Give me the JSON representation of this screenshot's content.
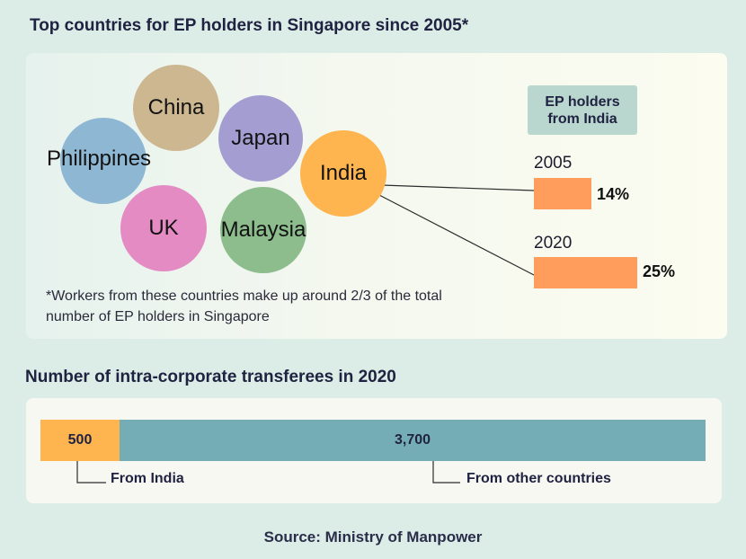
{
  "title": "Top countries for EP holders in Singapore since 2005*",
  "bubbles": [
    {
      "label": "China",
      "color": "#cdb790"
    },
    {
      "label": "Japan",
      "color": "#a49dd2"
    },
    {
      "label": "Philippines",
      "color": "#8eb7d3"
    },
    {
      "label": "India",
      "color": "#ffb54f"
    },
    {
      "label": "UK",
      "color": "#e38bc2"
    },
    {
      "label": "Malaysia",
      "color": "#8ebd8d"
    }
  ],
  "footnote": "*Workers from these countries make up around 2/3 of the total number of EP holders in Singapore",
  "ep_box": "EP holders from India",
  "chart_data": [
    {
      "type": "bar",
      "title": "EP holders from India",
      "categories": [
        "2005",
        "2020"
      ],
      "values": [
        14,
        25
      ],
      "value_labels": [
        "14%",
        "25%"
      ],
      "color": "#ff9d5c"
    },
    {
      "type": "bar",
      "title": "Number of intra-corporate transferees in 2020",
      "stacked": true,
      "series": [
        {
          "name": "From India",
          "values": [
            500
          ],
          "value_label": "500",
          "color": "#ffb54f"
        },
        {
          "name": "From other countries",
          "values": [
            3700
          ],
          "value_label": "3,700",
          "color": "#75adb6"
        }
      ]
    }
  ],
  "subtitle": "Number of intra-corporate transferees in 2020",
  "source": "Source: Ministry of Manpower"
}
